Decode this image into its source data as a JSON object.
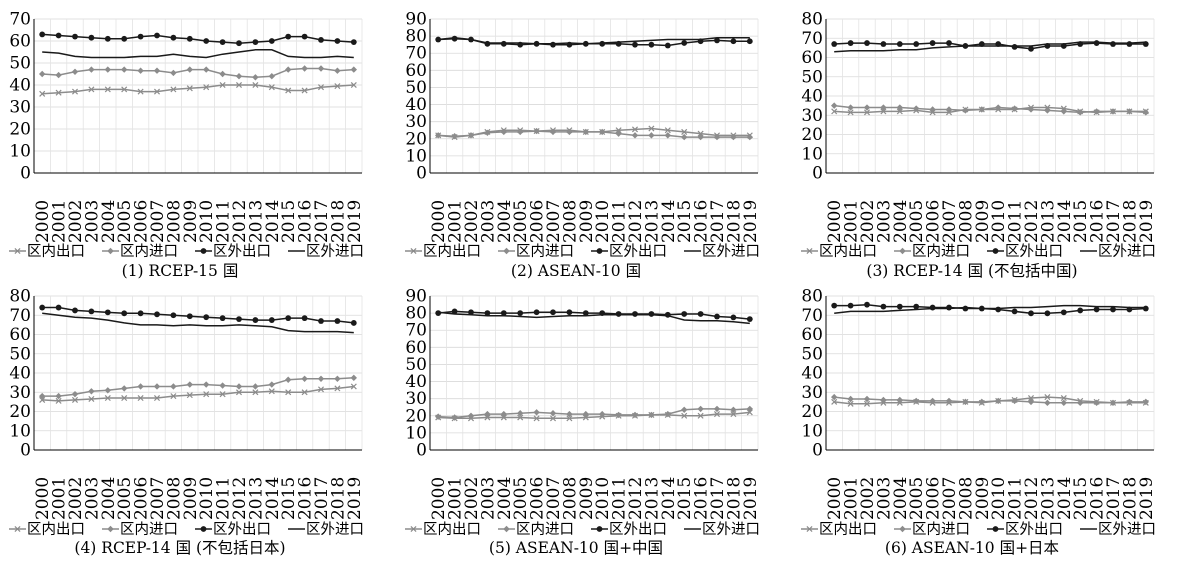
{
  "chart_data": [
    {
      "type": "line",
      "caption": "(1) RCEP-15 国",
      "x": [
        "2000",
        "2001",
        "2002",
        "2003",
        "2004",
        "2005",
        "2006",
        "2007",
        "2008",
        "2009",
        "2010",
        "2011",
        "2012",
        "2013",
        "2014",
        "2015",
        "2016",
        "2017",
        "2018",
        "2019"
      ],
      "ylim": [
        0,
        70
      ],
      "ytick_step": 10,
      "series": [
        {
          "name": "区内出口",
          "marker": "x",
          "color": "#8c8c8c",
          "values": [
            36,
            36.5,
            37,
            38,
            38,
            38,
            37,
            37,
            38,
            38.5,
            39,
            40,
            40,
            40,
            39,
            37.5,
            37.5,
            39,
            39.5,
            40
          ]
        },
        {
          "name": "区内进口",
          "marker": "diamond",
          "color": "#8c8c8c",
          "values": [
            45,
            44.5,
            46,
            47,
            47,
            47,
            46.5,
            46.5,
            45.5,
            47,
            47,
            45,
            44,
            43.5,
            44,
            47,
            47.5,
            47.5,
            46.5,
            47
          ]
        },
        {
          "name": "区外出口",
          "marker": "dot",
          "color": "#1a1a1a",
          "values": [
            63,
            62.5,
            62,
            61.5,
            61,
            61,
            62,
            62.5,
            61.5,
            61,
            60,
            59.5,
            59,
            59.5,
            60,
            62,
            62,
            60.5,
            60,
            59.5
          ]
        },
        {
          "name": "区外进口",
          "marker": "none",
          "color": "#1a1a1a",
          "values": [
            55,
            54.5,
            53,
            52.5,
            52.5,
            52.5,
            53,
            53,
            54,
            53,
            52.5,
            54,
            55,
            56,
            56,
            53,
            52.5,
            52.5,
            53,
            52.5
          ]
        }
      ]
    },
    {
      "type": "line",
      "caption": "(2) ASEAN-10 国",
      "x": [
        "2000",
        "2001",
        "2002",
        "2003",
        "2004",
        "2005",
        "2006",
        "2007",
        "2008",
        "2009",
        "2010",
        "2011",
        "2012",
        "2013",
        "2014",
        "2015",
        "2016",
        "2017",
        "2018",
        "2019"
      ],
      "ylim": [
        0,
        90
      ],
      "ytick_step": 10,
      "series": [
        {
          "name": "区内出口",
          "marker": "x",
          "color": "#8c8c8c",
          "values": [
            22,
            21,
            22,
            24,
            25,
            25,
            24.5,
            25,
            25,
            24,
            24,
            25,
            25.5,
            26,
            25,
            24,
            23,
            22,
            22,
            22
          ]
        },
        {
          "name": "区内进口",
          "marker": "diamond",
          "color": "#8c8c8c",
          "values": [
            22,
            21.5,
            22,
            23.5,
            24,
            24,
            24.5,
            24,
            24,
            24,
            24,
            23,
            22,
            22,
            22,
            21,
            21,
            21,
            21,
            21
          ]
        },
        {
          "name": "区外出口",
          "marker": "dot",
          "color": "#1a1a1a",
          "values": [
            78,
            78.5,
            78,
            75.5,
            75.5,
            75,
            75.5,
            75,
            75,
            75.5,
            75.5,
            75.5,
            75,
            75,
            74.5,
            76,
            77,
            77.5,
            77,
            77
          ]
        },
        {
          "name": "区外进口",
          "marker": "none",
          "color": "#1a1a1a",
          "values": [
            78,
            79,
            78,
            76,
            76,
            76,
            75.5,
            75.5,
            76,
            75.5,
            76,
            76.5,
            77,
            77.5,
            78,
            78,
            78,
            79,
            79,
            79
          ]
        }
      ]
    },
    {
      "type": "line",
      "caption": "(3) RCEP-14 国 (不包括中国)",
      "x": [
        "2000",
        "2001",
        "2002",
        "2003",
        "2004",
        "2005",
        "2006",
        "2007",
        "2008",
        "2009",
        "2010",
        "2011",
        "2012",
        "2013",
        "2014",
        "2015",
        "2016",
        "2017",
        "2018",
        "2019"
      ],
      "ylim": [
        0,
        80
      ],
      "ytick_step": 10,
      "series": [
        {
          "name": "区内出口",
          "marker": "x",
          "color": "#8c8c8c",
          "values": [
            32,
            31.5,
            31.5,
            32,
            32,
            32.5,
            31.5,
            31.5,
            33,
            33,
            33,
            33,
            34,
            34,
            33.5,
            32,
            31.5,
            32,
            32,
            32
          ]
        },
        {
          "name": "区内进口",
          "marker": "diamond",
          "color": "#8c8c8c",
          "values": [
            35,
            34,
            34,
            34,
            34,
            33.5,
            33,
            33,
            32.5,
            33,
            34,
            33.5,
            33,
            32.5,
            32,
            31.5,
            32,
            32,
            32,
            31.5
          ]
        },
        {
          "name": "区外出口",
          "marker": "dot",
          "color": "#1a1a1a",
          "values": [
            67,
            67.5,
            67.5,
            67,
            67,
            67,
            67.5,
            67.5,
            66,
            67,
            67,
            65.5,
            64.5,
            66,
            66,
            67,
            67.5,
            67,
            67,
            67
          ]
        },
        {
          "name": "区外进口",
          "marker": "none",
          "color": "#1a1a1a",
          "values": [
            63,
            63.5,
            63.5,
            63.5,
            64,
            64,
            65,
            65.5,
            66,
            66,
            66,
            66,
            66,
            67,
            67,
            68,
            68,
            67.5,
            67.5,
            68
          ]
        }
      ]
    },
    {
      "type": "line",
      "caption": "(4) RCEP-14 国 (不包括日本)",
      "x": [
        "2000",
        "2001",
        "2002",
        "2003",
        "2004",
        "2005",
        "2006",
        "2007",
        "2008",
        "2009",
        "2010",
        "2011",
        "2012",
        "2013",
        "2014",
        "2015",
        "2016",
        "2017",
        "2018",
        "2019"
      ],
      "ylim": [
        0,
        80
      ],
      "ytick_step": 10,
      "series": [
        {
          "name": "区内出口",
          "marker": "x",
          "color": "#8c8c8c",
          "values": [
            26,
            25.5,
            26,
            26.5,
            27,
            27,
            27,
            27,
            28,
            28.5,
            29,
            29,
            30,
            30,
            30.5,
            30,
            30,
            31.5,
            32,
            33
          ]
        },
        {
          "name": "区内进口",
          "marker": "diamond",
          "color": "#8c8c8c",
          "values": [
            28,
            28,
            29,
            30.5,
            31,
            32,
            33,
            33,
            33,
            34,
            34,
            33.5,
            33,
            33,
            34,
            36.5,
            37,
            37,
            37,
            37.5
          ]
        },
        {
          "name": "区外出口",
          "marker": "dot",
          "color": "#1a1a1a",
          "values": [
            74,
            74,
            72.5,
            72,
            71.5,
            71,
            71,
            70.5,
            70,
            69.5,
            69,
            68.5,
            68,
            67.5,
            67.5,
            68.5,
            68.5,
            67,
            67,
            66
          ]
        },
        {
          "name": "区外进口",
          "marker": "none",
          "color": "#1a1a1a",
          "values": [
            71,
            70,
            69,
            68.5,
            67.5,
            66,
            65,
            65,
            64.5,
            65,
            64.5,
            64.5,
            65,
            64.5,
            64,
            62,
            61.5,
            61.5,
            61.5,
            61
          ]
        }
      ]
    },
    {
      "type": "line",
      "caption": "(5) ASEAN-10 国+中国",
      "x": [
        "2000",
        "2001",
        "2002",
        "2003",
        "2004",
        "2005",
        "2006",
        "2007",
        "2008",
        "2009",
        "2010",
        "2011",
        "2012",
        "2013",
        "2014",
        "2015",
        "2016",
        "2017",
        "2018",
        "2019"
      ],
      "ylim": [
        0,
        90
      ],
      "ytick_step": 10,
      "series": [
        {
          "name": "区内出口",
          "marker": "x",
          "color": "#8c8c8c",
          "values": [
            19,
            18.5,
            18.5,
            19,
            19,
            19,
            18.5,
            18.5,
            18.5,
            19,
            19.5,
            20,
            20,
            20.5,
            20.5,
            20,
            20,
            21,
            21,
            22
          ]
        },
        {
          "name": "区内进口",
          "marker": "diamond",
          "color": "#8c8c8c",
          "values": [
            19.5,
            19,
            20,
            21,
            21,
            21.5,
            22,
            21.5,
            21,
            21,
            21,
            20.5,
            20.5,
            20.5,
            21,
            23.5,
            24,
            24,
            23.5,
            24
          ]
        },
        {
          "name": "区外出口",
          "marker": "dot",
          "color": "#1a1a1a",
          "values": [
            80,
            81,
            80.5,
            80,
            80,
            80,
            80.5,
            80.5,
            80.5,
            80,
            80,
            79.5,
            79.5,
            79.5,
            79,
            79.5,
            79.5,
            78,
            77.5,
            76.5
          ]
        },
        {
          "name": "区外进口",
          "marker": "none",
          "color": "#1a1a1a",
          "values": [
            80.5,
            79.5,
            79,
            78.5,
            78.5,
            78,
            77.5,
            78,
            78.5,
            78.5,
            79,
            79,
            79,
            79,
            78.5,
            76,
            75.5,
            75.5,
            75,
            74
          ]
        }
      ]
    },
    {
      "type": "line",
      "caption": "(6) ASEAN-10 国+日本",
      "x": [
        "2000",
        "2001",
        "2002",
        "2003",
        "2004",
        "2005",
        "2006",
        "2007",
        "2008",
        "2009",
        "2010",
        "2011",
        "2012",
        "2013",
        "2014",
        "2015",
        "2016",
        "2017",
        "2018",
        "2019"
      ],
      "ylim": [
        0,
        80
      ],
      "ytick_step": 10,
      "series": [
        {
          "name": "区内出口",
          "marker": "x",
          "color": "#8c8c8c",
          "values": [
            25,
            24,
            24,
            24.5,
            24.5,
            25,
            24.5,
            24.5,
            25,
            24.5,
            25.5,
            26,
            27,
            27.5,
            27,
            25.5,
            25,
            24.5,
            24.5,
            24.5
          ]
        },
        {
          "name": "区内进口",
          "marker": "diamond",
          "color": "#8c8c8c",
          "values": [
            27.5,
            26.5,
            26.5,
            26,
            26,
            25.5,
            25.5,
            25.5,
            25,
            25,
            25.5,
            25.5,
            25,
            24.5,
            24.5,
            24.5,
            24.5,
            24.5,
            25,
            25
          ]
        },
        {
          "name": "区外出口",
          "marker": "dot",
          "color": "#1a1a1a",
          "values": [
            75,
            75,
            75.5,
            74.5,
            74.5,
            74.5,
            74,
            74,
            73.5,
            73.5,
            73,
            72,
            71,
            71,
            71.5,
            72.5,
            73,
            73,
            73,
            73.5
          ]
        },
        {
          "name": "区外进口",
          "marker": "none",
          "color": "#1a1a1a",
          "values": [
            71,
            72,
            72,
            72,
            72.5,
            73,
            73.5,
            73.5,
            74,
            73.5,
            73.5,
            74,
            74,
            74.5,
            75,
            75,
            74.5,
            74.5,
            74,
            74
          ]
        }
      ]
    }
  ]
}
